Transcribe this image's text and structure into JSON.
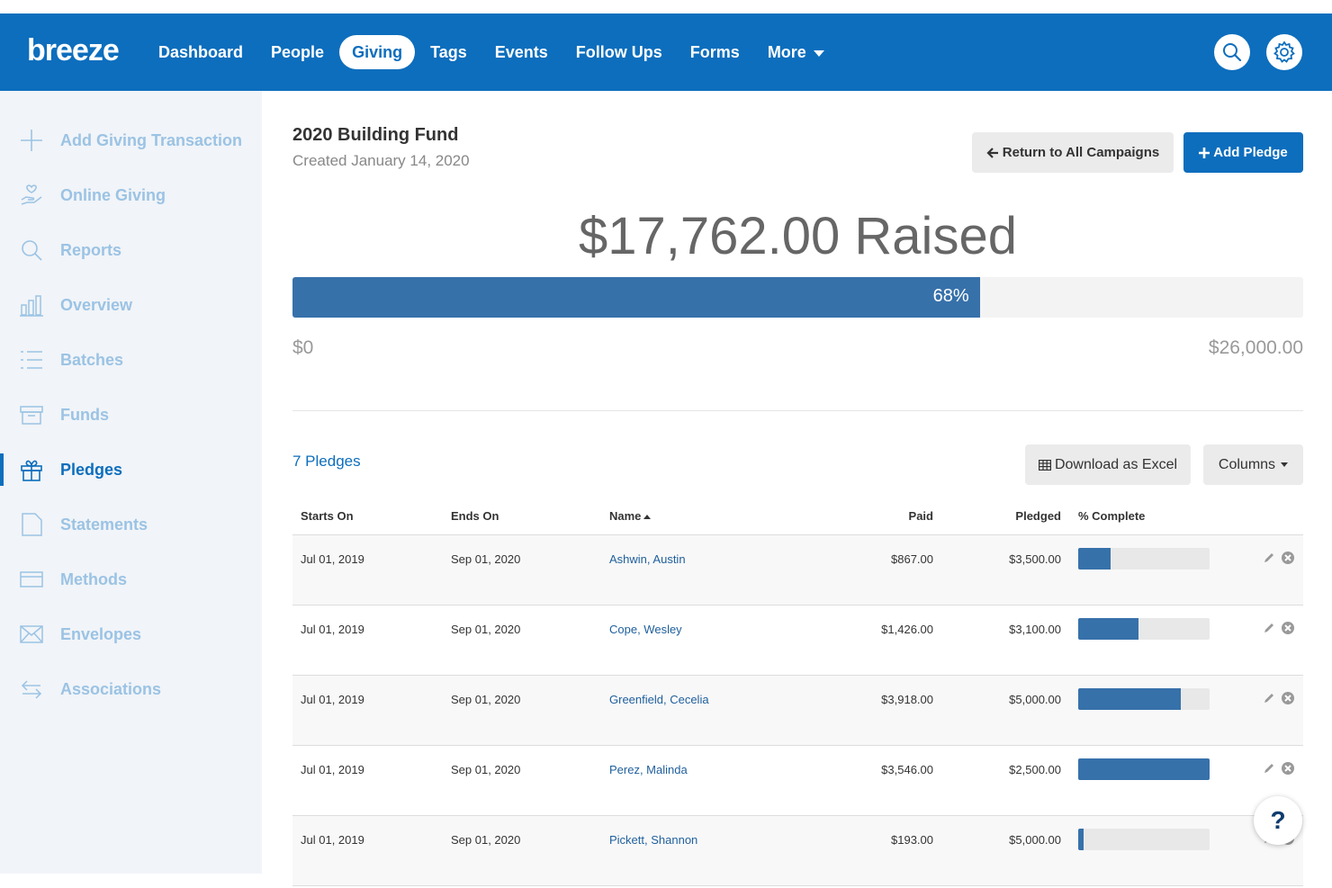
{
  "app": {
    "logo": "breeze"
  },
  "nav": {
    "items": [
      {
        "label": "Dashboard"
      },
      {
        "label": "People"
      },
      {
        "label": "Giving",
        "active": true
      },
      {
        "label": "Tags"
      },
      {
        "label": "Events"
      },
      {
        "label": "Follow Ups"
      },
      {
        "label": "Forms"
      },
      {
        "label": "More"
      }
    ],
    "icons": [
      "search-icon",
      "gear-icon"
    ]
  },
  "sidebar": {
    "items": [
      {
        "label": "Add Giving Transaction",
        "icon": "plus-icon"
      },
      {
        "label": "Online Giving",
        "icon": "hand-heart-icon"
      },
      {
        "label": "Reports",
        "icon": "search-icon"
      },
      {
        "label": "Overview",
        "icon": "bar-chart-icon"
      },
      {
        "label": "Batches",
        "icon": "list-icon"
      },
      {
        "label": "Funds",
        "icon": "archive-box-icon"
      },
      {
        "label": "Pledges",
        "icon": "gift-icon",
        "active": true
      },
      {
        "label": "Statements",
        "icon": "document-icon"
      },
      {
        "label": "Methods",
        "icon": "credit-card-icon"
      },
      {
        "label": "Envelopes",
        "icon": "envelope-icon"
      },
      {
        "label": "Associations",
        "icon": "swap-arrows-icon"
      }
    ]
  },
  "campaign": {
    "title": "2020 Building Fund",
    "created": "Created January 14, 2020",
    "return_label": "Return to All Campaigns",
    "add_label": "Add Pledge",
    "raised": "$17,762.00 Raised",
    "progress_percent": 68,
    "progress_label": "68%",
    "range_min": "$0",
    "range_max": "$26,000.00"
  },
  "pledges": {
    "count_label": "7 Pledges",
    "excel_label": "Download as Excel",
    "columns_label": "Columns",
    "headers": [
      "Starts On",
      "Ends On",
      "Name",
      "Paid",
      "Pledged",
      "% Complete"
    ],
    "rows": [
      {
        "starts": "Jul 01, 2019",
        "ends": "Sep 01, 2020",
        "name": "Ashwin, Austin",
        "paid": "$867.00",
        "pledged": "$3,500.00",
        "complete": 0.248
      },
      {
        "starts": "Jul 01, 2019",
        "ends": "Sep 01, 2020",
        "name": "Cope, Wesley",
        "paid": "$1,426.00",
        "pledged": "$3,100.00",
        "complete": 0.46
      },
      {
        "starts": "Jul 01, 2019",
        "ends": "Sep 01, 2020",
        "name": "Greenfield, Cecelia",
        "paid": "$3,918.00",
        "pledged": "$5,000.00",
        "complete": 0.784
      },
      {
        "starts": "Jul 01, 2019",
        "ends": "Sep 01, 2020",
        "name": "Perez, Malinda",
        "paid": "$3,546.00",
        "pledged": "$2,500.00",
        "complete": 1.0
      },
      {
        "starts": "Jul 01, 2019",
        "ends": "Sep 01, 2020",
        "name": "Pickett, Shannon",
        "paid": "$193.00",
        "pledged": "$5,000.00",
        "complete": 0.039
      }
    ]
  },
  "help": {
    "label": "?"
  },
  "colors": {
    "brand": "#0d6ebd",
    "bar": "#3771aa",
    "sidebar_text": "#9bc3e4"
  }
}
